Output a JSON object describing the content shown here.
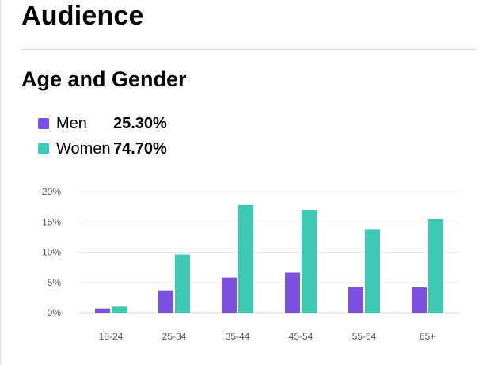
{
  "section_title": "Audience",
  "chart_title": "Age and Gender",
  "legend": [
    {
      "name": "Men",
      "value": "25.30%",
      "color": "#7b4fe0"
    },
    {
      "name": "Women",
      "value": "74.70%",
      "color": "#3cc9b4"
    }
  ],
  "chart_data": {
    "type": "bar",
    "title": "Age and Gender",
    "categories": [
      "18-24",
      "25-34",
      "35-44",
      "45-54",
      "55-64",
      "65+"
    ],
    "series": [
      {
        "name": "Men",
        "color": "#7b4fe0",
        "values": [
          0.7,
          3.7,
          5.8,
          6.6,
          4.3,
          4.2
        ]
      },
      {
        "name": "Women",
        "color": "#3cc9b4",
        "values": [
          1.0,
          9.6,
          17.8,
          17.0,
          13.8,
          15.5
        ]
      }
    ],
    "ylim": [
      0,
      20
    ],
    "y_ticks": [
      "0%",
      "5%",
      "10%",
      "15%",
      "20%"
    ],
    "grid": true,
    "legend_position": "top-left"
  }
}
